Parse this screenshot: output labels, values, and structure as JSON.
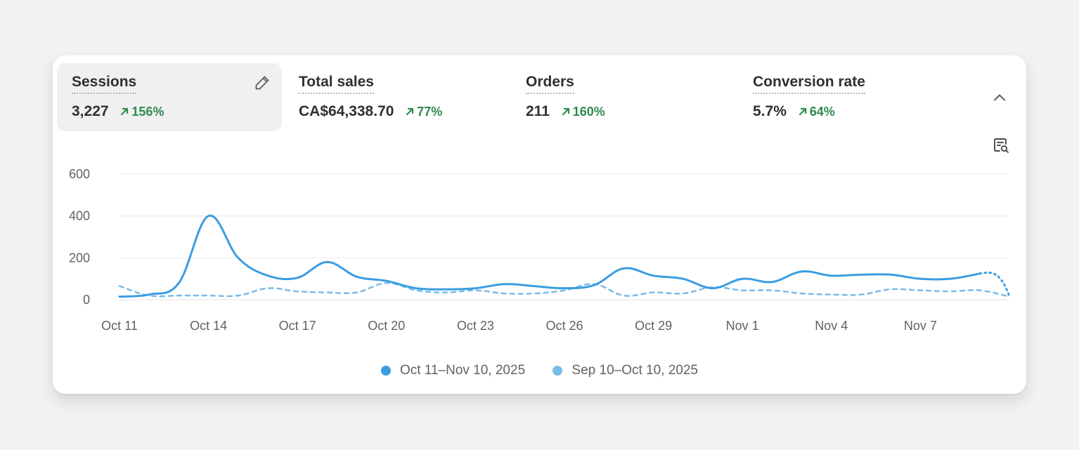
{
  "metrics": [
    {
      "title": "Sessions",
      "value": "3,227",
      "change": "156%"
    },
    {
      "title": "Total sales",
      "value": "CA$64,338.70",
      "change": "77%"
    },
    {
      "title": "Orders",
      "value": "211",
      "change": "160%"
    },
    {
      "title": "Conversion rate",
      "value": "5.7%",
      "change": "64%"
    }
  ],
  "icons": {
    "edit": "pencil-icon",
    "collapse": "chevron-up-icon",
    "report": "report-search-icon",
    "trend": "arrow-up-right-icon"
  },
  "colors": {
    "current": "#3b9de1",
    "previous": "#79bce8",
    "positive": "#2f8a4f"
  },
  "legend": {
    "current": "Oct 11–Nov 10, 2025",
    "previous": "Sep 10–Oct 10, 2025"
  },
  "chart_data": {
    "type": "line",
    "ylim": [
      0,
      600
    ],
    "yticks": [
      "0",
      "200",
      "400",
      "600"
    ],
    "xtick_labels": [
      "Oct 11",
      "Oct 14",
      "Oct 17",
      "Oct 20",
      "Oct 23",
      "Oct 26",
      "Oct 29",
      "Nov 1",
      "Nov 4",
      "Nov 7"
    ],
    "x": [
      "Oct 11",
      "Oct 12",
      "Oct 13",
      "Oct 14",
      "Oct 15",
      "Oct 16",
      "Oct 17",
      "Oct 18",
      "Oct 19",
      "Oct 20",
      "Oct 21",
      "Oct 22",
      "Oct 23",
      "Oct 24",
      "Oct 25",
      "Oct 26",
      "Oct 27",
      "Oct 28",
      "Oct 29",
      "Oct 30",
      "Oct 31",
      "Nov 1",
      "Nov 2",
      "Nov 3",
      "Nov 4",
      "Nov 5",
      "Nov 6",
      "Nov 7",
      "Nov 8",
      "Nov 9",
      "Nov 10"
    ],
    "series": [
      {
        "name": "Oct 11–Nov 10, 2025",
        "style": "solid",
        "values": [
          15,
          25,
          80,
          400,
          200,
          115,
          105,
          180,
          110,
          90,
          55,
          50,
          55,
          75,
          65,
          55,
          70,
          150,
          115,
          100,
          55,
          100,
          85,
          135,
          115,
          120,
          120,
          100,
          100,
          125,
          15
        ]
      },
      {
        "name": "Sep 10–Oct 10, 2025",
        "style": "dashed",
        "values": [
          65,
          20,
          20,
          20,
          20,
          55,
          40,
          35,
          35,
          80,
          45,
          35,
          45,
          30,
          30,
          45,
          75,
          20,
          35,
          30,
          60,
          45,
          45,
          30,
          25,
          25,
          50,
          45,
          40,
          45,
          15
        ]
      }
    ]
  }
}
